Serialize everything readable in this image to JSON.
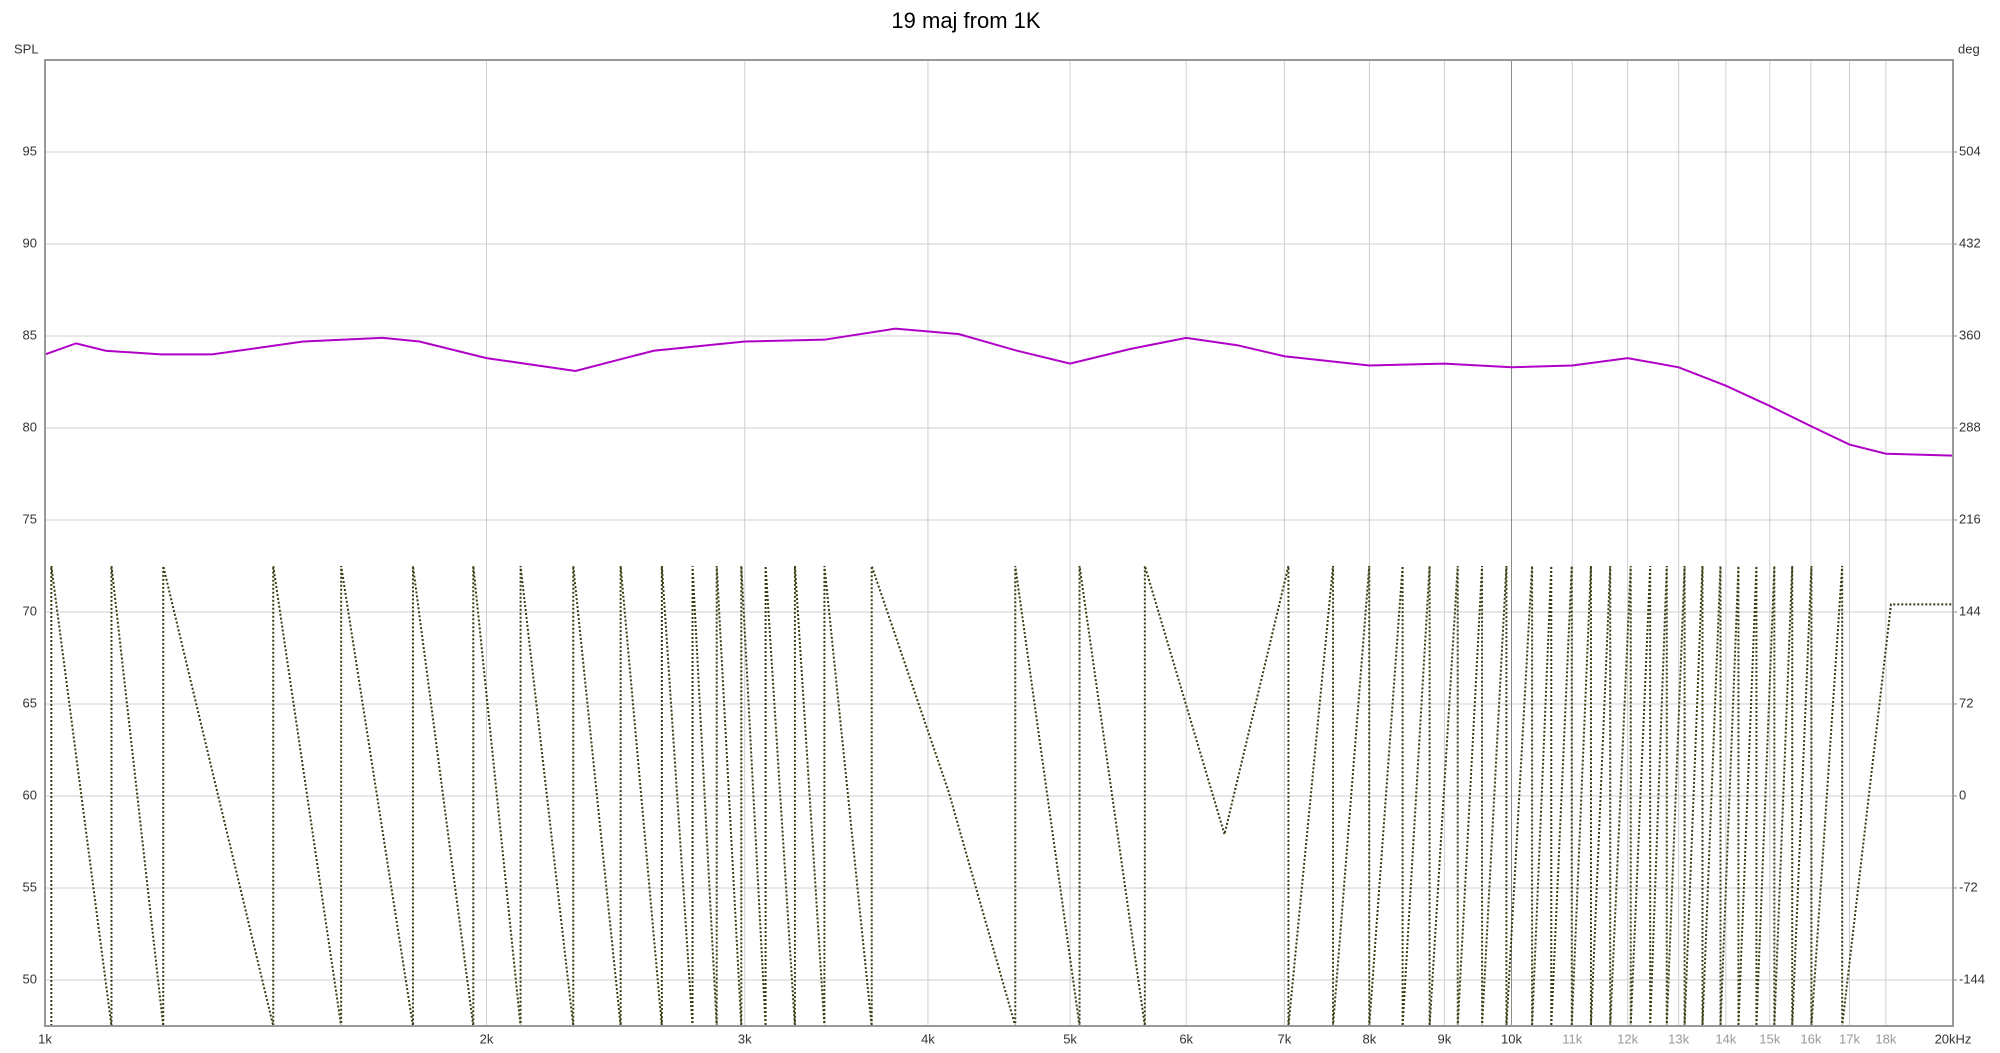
{
  "chart_data": {
    "type": "line",
    "title": "19 maj from 1K",
    "y_label": "SPL",
    "y2_label": "deg",
    "xscale": "log",
    "xlim": [
      1000,
      20000
    ],
    "xticks": [
      {
        "value": 1000,
        "label": "1k"
      },
      {
        "value": 2000,
        "label": "2k"
      },
      {
        "value": 3000,
        "label": "3k"
      },
      {
        "value": 4000,
        "label": "4k"
      },
      {
        "value": 5000,
        "label": "5k"
      },
      {
        "value": 6000,
        "label": "6k"
      },
      {
        "value": 7000,
        "label": "7k"
      },
      {
        "value": 8000,
        "label": "8k"
      },
      {
        "value": 9000,
        "label": "9k"
      },
      {
        "value": 10000,
        "label": "10k"
      },
      {
        "value": 11000,
        "label": "11k"
      },
      {
        "value": 12000,
        "label": "12k"
      },
      {
        "value": 13000,
        "label": "13k"
      },
      {
        "value": 14000,
        "label": "14k"
      },
      {
        "value": 15000,
        "label": "15k"
      },
      {
        "value": 16000,
        "label": "16k"
      },
      {
        "value": 17000,
        "label": "17k"
      },
      {
        "value": 18000,
        "label": "18k"
      },
      {
        "value": 20000,
        "label": "20kHz"
      }
    ],
    "ylim": [
      47.5,
      100
    ],
    "yticks": [
      50,
      55,
      60,
      65,
      70,
      75,
      80,
      85,
      90,
      95
    ],
    "y2lim": [
      -180,
      576
    ],
    "y2ticks": [
      -144,
      -72,
      0,
      72,
      144,
      216,
      288,
      360,
      432,
      504
    ],
    "grid": true,
    "series": [
      {
        "color": "#b000c8",
        "style": "solid",
        "x": [
          1000,
          1050,
          1100,
          1200,
          1300,
          1500,
          1700,
          1800,
          2000,
          2300,
          2600,
          3000,
          3400,
          3800,
          4200,
          4600,
          5000,
          5500,
          6000,
          6500,
          7000,
          8000,
          9000,
          10000,
          11000,
          12000,
          13000,
          14000,
          15000,
          16000,
          17000,
          18000,
          20000
        ],
        "values": [
          84.0,
          84.6,
          84.2,
          84.0,
          84.0,
          84.7,
          84.9,
          84.7,
          83.8,
          83.1,
          84.2,
          84.7,
          84.8,
          85.4,
          85.1,
          84.2,
          83.5,
          84.3,
          84.9,
          84.5,
          83.9,
          83.4,
          83.5,
          83.3,
          83.4,
          83.8,
          83.3,
          82.3,
          81.2,
          80.1,
          79.1,
          78.6,
          78.5
        ]
      },
      {
        "color": "#3a3a10",
        "style": "dotted",
        "axis": "y2",
        "x": [
          1010,
          1010,
          1110,
          1110,
          1204,
          1204,
          1431,
          1431,
          1592,
          1592,
          1782,
          1782,
          1959,
          1959,
          2110,
          2110,
          2292,
          2292,
          2469,
          2469,
          2634,
          2634,
          2764,
          2764,
          2871,
          2871,
          2984,
          2984,
          3100,
          3100,
          3246,
          3246,
          3400,
          3400,
          3662,
          3662,
          4133,
          4588,
          4588,
          5075,
          5075,
          5623,
          5623,
          6372,
          7045,
          7045,
          7556,
          7556,
          7998,
          7998,
          8428,
          8428,
          8793,
          8793,
          9190,
          9190,
          9548,
          9548,
          9920,
          9920,
          10328,
          10328,
          10644,
          10644,
          10992,
          10992,
          11328,
          11328,
          11676,
          11676,
          12058,
          12058,
          12432,
          12432,
          12760,
          12760,
          13122,
          13122,
          13496,
          13496,
          13883,
          13883,
          14280,
          14280,
          14689,
          14689,
          15108,
          15108,
          15538,
          15538,
          16014,
          16014,
          16806,
          16806,
          18145,
          20000
        ],
        "values": [
          -180,
          180,
          -180,
          180,
          -180,
          180,
          -180,
          180,
          -180,
          180,
          -180,
          180,
          -180,
          180,
          -180,
          180,
          -180,
          180,
          -180,
          180,
          -180,
          180,
          -180,
          180,
          -180,
          180,
          -180,
          180,
          -180,
          180,
          -180,
          180,
          -180,
          180,
          -180,
          180,
          3,
          -180,
          180,
          -180,
          180,
          -180,
          180,
          -30,
          180,
          -180,
          180,
          -180,
          180,
          -180,
          180,
          -180,
          180,
          -180,
          180,
          -180,
          180,
          -180,
          180,
          -180,
          180,
          -180,
          180,
          -180,
          180,
          -180,
          180,
          -180,
          180,
          -180,
          180,
          -180,
          180,
          -180,
          180,
          -180,
          180,
          -180,
          180,
          -180,
          180,
          -180,
          180,
          -180,
          180,
          -180,
          180,
          -180,
          180,
          -180,
          180,
          -180,
          180,
          -180,
          150,
          150
        ]
      }
    ]
  }
}
